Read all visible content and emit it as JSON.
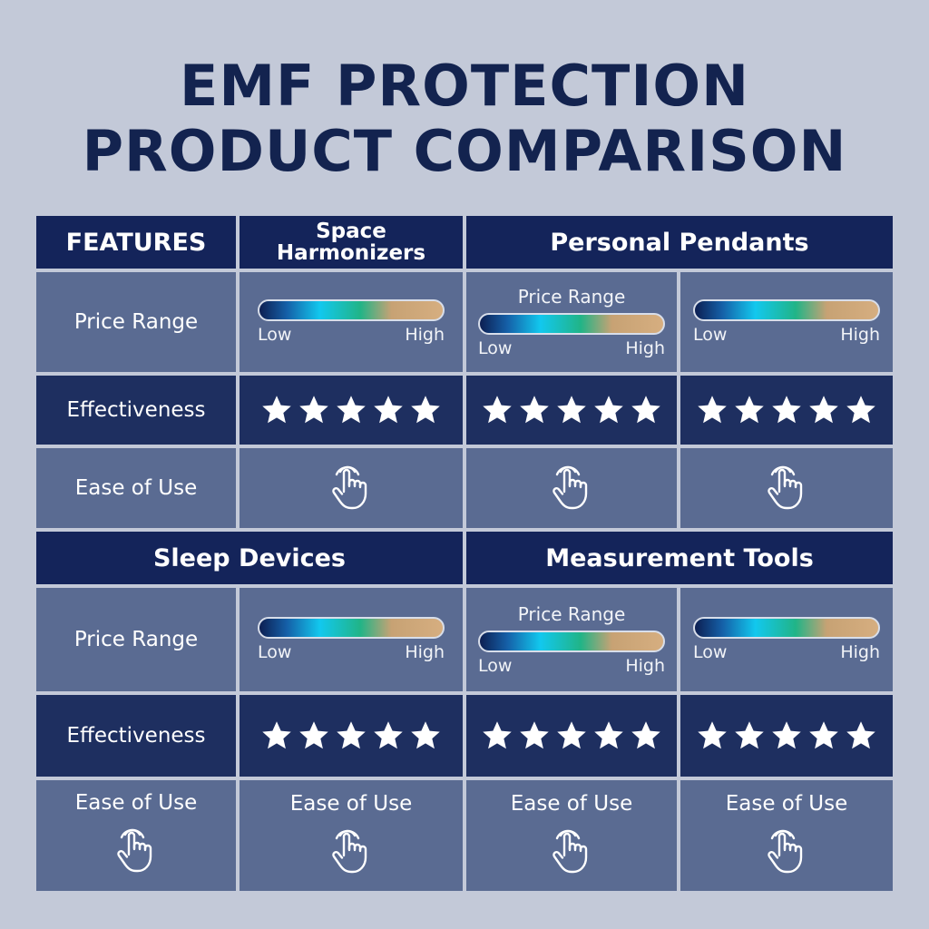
{
  "title": {
    "line1": "EMF PROTECTION",
    "line2": "PRODUCT COMPARISON"
  },
  "headers": {
    "features": "FEATURES",
    "space_harmonizers": "Space Harmonizers",
    "personal_pendants": "Personal Pendants",
    "sleep_devices": "Sleep Devices",
    "measurement_tools": "Measurement Tools"
  },
  "row_labels": {
    "price_range": "Price Range",
    "effectiveness": "Effectiveness",
    "ease_of_use": "Ease of Use"
  },
  "bar_labels": {
    "low": "Low",
    "high": "High"
  },
  "cell_labels": {
    "price_range": "Price Range",
    "ease_of_use": "Ease of Use"
  },
  "effectiveness_stars": {
    "rating": 5,
    "max": 5
  },
  "icons": {
    "star": "star-icon",
    "hand": "tap-hand-icon"
  },
  "colors": {
    "header_bg": "#14245a",
    "row_light": "#5a6b92",
    "row_dark": "#1e2f60",
    "title": "#13234f",
    "page_bg": "#c3c9d8"
  }
}
